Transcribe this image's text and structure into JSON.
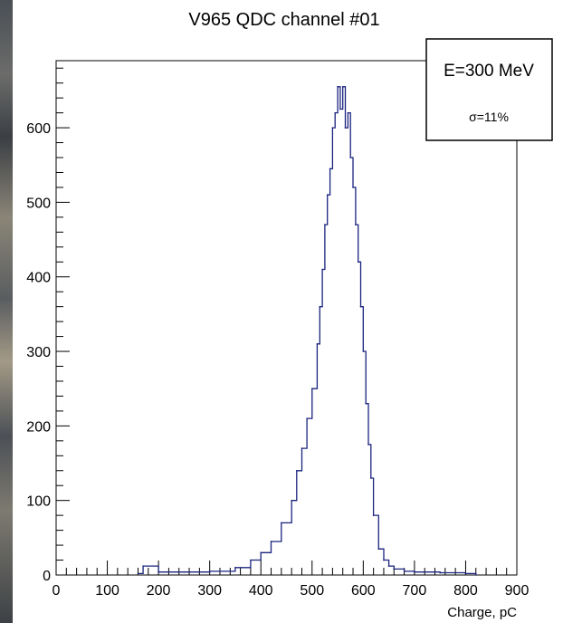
{
  "chart_data": {
    "type": "line",
    "title": "V965 QDC channel #01",
    "xlabel": "Charge, pC",
    "ylabel": "",
    "xlim": [
      0,
      900
    ],
    "ylim": [
      0,
      690
    ],
    "x_ticks": [
      "0",
      "100",
      "200",
      "300",
      "400",
      "500",
      "600",
      "700",
      "800",
      "900"
    ],
    "y_ticks": [
      "0",
      "100",
      "200",
      "300",
      "400",
      "500",
      "600"
    ],
    "grid": false,
    "legend_position": "top-right",
    "annotations": [
      "E=300 MeV",
      "σ=11%"
    ],
    "series": [
      {
        "color": "#1a237e",
        "x": [
          160,
          170,
          200,
          250,
          300,
          350,
          380,
          400,
          420,
          440,
          460,
          470,
          480,
          490,
          500,
          510,
          515,
          520,
          525,
          530,
          535,
          540,
          545,
          550,
          555,
          560,
          565,
          570,
          575,
          580,
          585,
          590,
          595,
          600,
          605,
          610,
          615,
          620,
          630,
          640,
          650,
          660,
          680,
          700,
          750,
          800,
          820
        ],
        "y": [
          2,
          12,
          4,
          4,
          5,
          10,
          20,
          30,
          45,
          70,
          100,
          140,
          170,
          210,
          250,
          310,
          360,
          410,
          470,
          510,
          545,
          600,
          620,
          655,
          625,
          655,
          600,
          620,
          560,
          520,
          470,
          420,
          360,
          300,
          230,
          175,
          130,
          80,
          35,
          20,
          12,
          8,
          5,
          4,
          3,
          2,
          0
        ]
      }
    ]
  }
}
